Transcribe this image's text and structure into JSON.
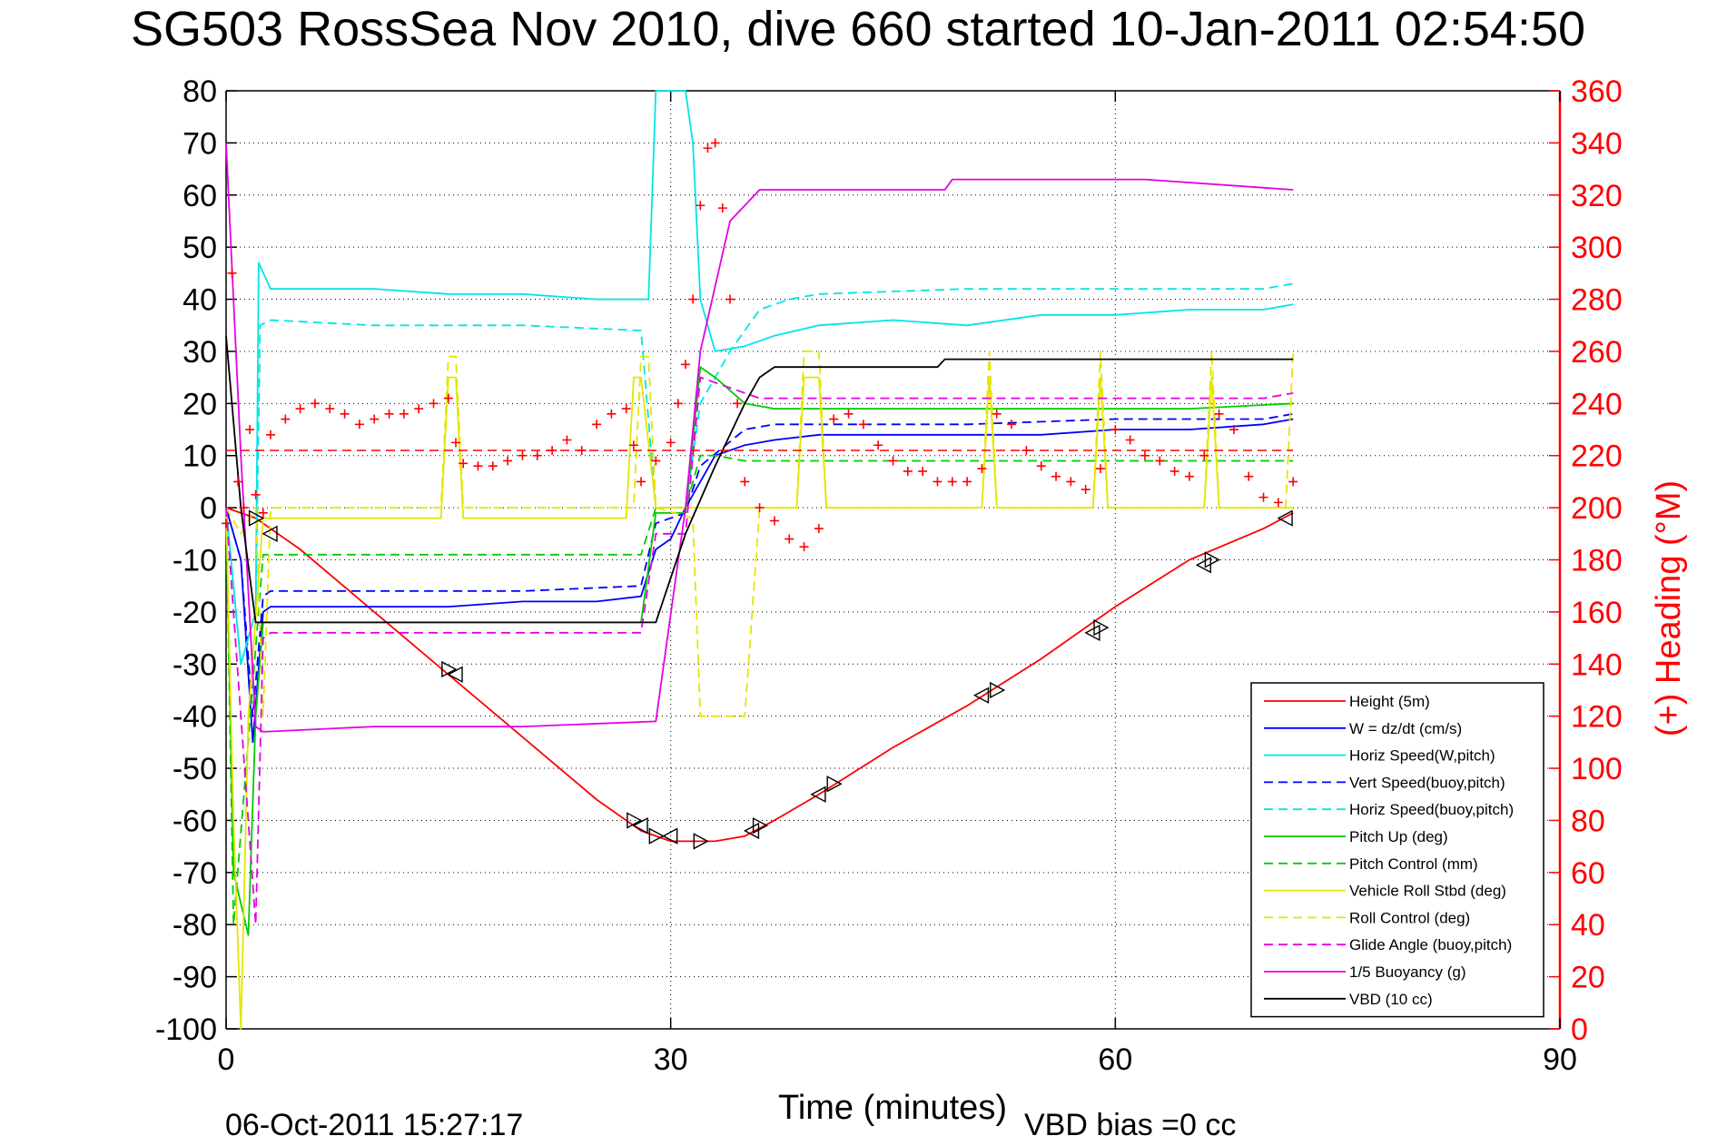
{
  "chart_data": {
    "type": "line",
    "title": "SG503 RossSea Nov 2010, dive 660 started 10-Jan-2011 02:54:50",
    "xlabel": "Time (minutes)",
    "ylabel_right": "(+) Heading (°M)",
    "footer_timestamp": "06-Oct-2011 15:27:17",
    "footer_note": "VBD bias =0 cc",
    "xlim": [
      0,
      90
    ],
    "ylim_left": [
      -100,
      80
    ],
    "ylim_right": [
      0,
      360
    ],
    "xticks": [
      "0",
      "30",
      "60",
      "90"
    ],
    "yticks_left": [
      "80",
      "70",
      "60",
      "50",
      "40",
      "30",
      "20",
      "10",
      "0",
      "-10",
      "-20",
      "-30",
      "-40",
      "-50",
      "-60",
      "-70",
      "-80",
      "-90",
      "-100"
    ],
    "yticks_right": [
      "360",
      "340",
      "320",
      "300",
      "280",
      "260",
      "240",
      "220",
      "200",
      "180",
      "160",
      "140",
      "120",
      "100",
      "80",
      "60",
      "40",
      "20",
      "0"
    ],
    "grid": true,
    "legend_position": "bottom-right",
    "colors": {
      "right_axis": "#ff0000"
    },
    "series": [
      {
        "name": "Height (5m)",
        "color": "#ff0000",
        "style": "solid",
        "x": [
          0,
          2,
          5,
          10,
          15,
          20,
          25,
          28,
          30,
          31,
          32,
          33,
          35,
          37,
          40,
          45,
          50,
          55,
          60,
          65,
          70,
          72
        ],
        "y": [
          0,
          -2,
          -8,
          -20,
          -32,
          -44,
          -56,
          -62,
          -64,
          -64,
          -64,
          -64,
          -63,
          -60,
          -55,
          -46,
          -38,
          -29,
          -19,
          -10,
          -4,
          -1
        ]
      },
      {
        "name": "W = dz/dt (cm/s)",
        "color": "#0000ff",
        "style": "solid",
        "x": [
          0,
          1,
          1.8,
          2.5,
          3,
          5,
          10,
          15,
          20,
          25,
          28,
          29,
          30,
          31,
          33,
          35,
          37,
          40,
          45,
          50,
          55,
          60,
          65,
          70,
          72
        ],
        "y": [
          0,
          -10,
          -45,
          -20,
          -19,
          -19,
          -19,
          -19,
          -18,
          -18,
          -17,
          -8,
          -6,
          0,
          10,
          12,
          13,
          14,
          14,
          14,
          14,
          15,
          15,
          16,
          17
        ]
      },
      {
        "name": "Horiz Speed(W,pitch)",
        "color": "#00e5e5",
        "style": "solid",
        "x": [
          0,
          1,
          2,
          2.2,
          3,
          5,
          10,
          15,
          20,
          25,
          28.5,
          29,
          30,
          31,
          31.5,
          32,
          33,
          35,
          37,
          40,
          45,
          50,
          55,
          60,
          65,
          70,
          72
        ],
        "y": [
          0,
          -30,
          -20,
          47,
          42,
          42,
          42,
          41,
          41,
          40,
          40,
          80,
          80,
          80,
          70,
          40,
          30,
          31,
          33,
          35,
          36,
          35,
          37,
          37,
          38,
          38,
          39
        ]
      },
      {
        "name": "Vert Speed(buoy,pitch)",
        "color": "#0000ff",
        "style": "dashed",
        "x": [
          0,
          1,
          1.8,
          2.5,
          3,
          10,
          20,
          28,
          29,
          31,
          32,
          35,
          37,
          40,
          50,
          60,
          70,
          72
        ],
        "y": [
          0,
          -10,
          -40,
          -17,
          -16,
          -16,
          -16,
          -15,
          -3,
          -1,
          8,
          15,
          16,
          16,
          16,
          17,
          17,
          18
        ]
      },
      {
        "name": "Horiz Speed(buoy,pitch)",
        "color": "#00e5e5",
        "style": "dashed",
        "x": [
          0,
          1,
          2,
          2.3,
          3,
          10,
          20,
          28,
          29,
          31,
          32,
          34,
          36,
          38,
          40,
          50,
          60,
          70,
          72
        ],
        "y": [
          0,
          -30,
          -20,
          35,
          36,
          35,
          35,
          34,
          0,
          0,
          20,
          30,
          38,
          40,
          41,
          42,
          42,
          42,
          43
        ]
      },
      {
        "name": "Pitch Up (deg)",
        "color": "#00cc00",
        "style": "solid",
        "x": [
          0,
          0.5,
          1.5,
          2,
          2.5,
          3,
          10,
          20,
          28,
          29,
          31,
          32,
          33,
          35,
          37,
          45,
          55,
          65,
          72
        ],
        "y": [
          0,
          -70,
          -82,
          -40,
          -22,
          -22,
          -22,
          -22,
          -22,
          -1,
          -1,
          27,
          25,
          20,
          19,
          19,
          19,
          19,
          20
        ]
      },
      {
        "name": "Pitch Control (mm)",
        "color": "#00cc00",
        "style": "dashed",
        "x": [
          0,
          0.5,
          2.5,
          3,
          10,
          20,
          28,
          29,
          31,
          32,
          33,
          35,
          37,
          40,
          50,
          60,
          70,
          72
        ],
        "y": [
          0,
          -80,
          -9,
          -9,
          -9,
          -9,
          -9,
          0,
          0,
          10,
          10,
          9,
          9,
          9,
          9,
          9,
          9,
          9
        ]
      },
      {
        "name": "Vehicle Roll Stbd (deg)",
        "color": "#e5e500",
        "style": "solid",
        "x": [
          0,
          0.5,
          1,
          1.5,
          2.5,
          3,
          14.5,
          15,
          15.5,
          16,
          27,
          27.5,
          28,
          29,
          31,
          35,
          38.5,
          39,
          40,
          40.5,
          51,
          51.5,
          52,
          58.5,
          59,
          59.5,
          66,
          66.5,
          67,
          72
        ],
        "y": [
          0,
          -60,
          -100,
          -40,
          -2,
          -2,
          -2,
          25,
          25,
          -2,
          -2,
          25,
          25,
          0,
          0,
          0,
          0,
          25,
          25,
          0,
          0,
          25,
          0,
          0,
          25,
          0,
          0,
          25,
          0,
          0
        ]
      },
      {
        "name": "Roll Control (deg)",
        "color": "#e5e500",
        "style": "dashed",
        "x": [
          0,
          1,
          2,
          2.5,
          3,
          14.5,
          15,
          15.5,
          16,
          27.5,
          28,
          28.5,
          29,
          31.5,
          32,
          35,
          35.5,
          36,
          38.5,
          39,
          40,
          40.5,
          51,
          51.5,
          52,
          58.5,
          59,
          59.5,
          66,
          66.5,
          67,
          71.5,
          72
        ],
        "y": [
          0,
          -5,
          0,
          -40,
          0,
          0,
          29,
          29,
          0,
          0,
          29,
          29,
          0,
          -2,
          -40,
          -40,
          -20,
          0,
          0,
          30,
          30,
          0,
          0,
          30,
          0,
          0,
          30,
          0,
          0,
          30,
          0,
          0,
          30
        ]
      },
      {
        "name": "Glide Angle (buoy,pitch)",
        "color": "#e500e5",
        "style": "dashed",
        "x": [
          0,
          1,
          2,
          2.5,
          3,
          10,
          20,
          28,
          29,
          31,
          32,
          34,
          36,
          40,
          50,
          60,
          70,
          72
        ],
        "y": [
          0,
          -40,
          -80,
          -25,
          -24,
          -24,
          -24,
          -24,
          -5,
          -5,
          25,
          23,
          21,
          21,
          21,
          21,
          21,
          22
        ]
      },
      {
        "name": "1/5 Buoyancy (g)",
        "color": "#e500e5",
        "style": "solid",
        "x": [
          0,
          1,
          2,
          2.5,
          10,
          20,
          29,
          31,
          32,
          34,
          36,
          40,
          45,
          48.5,
          49,
          55,
          62,
          67,
          72
        ],
        "y": [
          70,
          10,
          -42,
          -43,
          -42,
          -42,
          -41,
          0,
          30,
          55,
          61,
          61,
          61,
          61,
          63,
          63,
          63,
          62,
          61
        ]
      },
      {
        "name": "VBD (10 cc)",
        "color": "#000000",
        "style": "solid",
        "x": [
          0,
          1,
          2,
          2.5,
          10,
          20,
          29,
          31,
          33,
          35,
          36,
          37,
          40,
          48,
          48.5,
          60,
          72
        ],
        "y": [
          33,
          0,
          -22,
          -22,
          -22,
          -22,
          -22,
          -5,
          8,
          20,
          25,
          27,
          27,
          27,
          28.5,
          28.5,
          28.5
        ]
      }
    ],
    "heading_series": {
      "name": "(+) Heading (°M)",
      "axis": "right",
      "color": "#ff0000",
      "marker": "+",
      "reference_line": {
        "value": 222,
        "style": "dashed"
      },
      "x": [
        0,
        0.4,
        0.8,
        1.2,
        1.6,
        2.0,
        2.5,
        3,
        4,
        5,
        6,
        7,
        8,
        9,
        10,
        11,
        12,
        13,
        14,
        15,
        15.5,
        16,
        17,
        18,
        19,
        20,
        21,
        22,
        23,
        24,
        25,
        26,
        27,
        27.5,
        28,
        29,
        30,
        30.5,
        31,
        31.5,
        32,
        32.5,
        33,
        33.5,
        34,
        34.5,
        35,
        36,
        37,
        38,
        39,
        40,
        41,
        42,
        43,
        44,
        45,
        46,
        47,
        48,
        49,
        50,
        51,
        52,
        53,
        54,
        55,
        56,
        57,
        58,
        59,
        60,
        61,
        62,
        63,
        64,
        65,
        66,
        67,
        68,
        69,
        70,
        71,
        72
      ],
      "y": [
        194,
        290,
        210,
        200,
        230,
        205,
        198,
        228,
        234,
        238,
        240,
        238,
        236,
        232,
        234,
        236,
        236,
        238,
        240,
        242,
        225,
        217,
        216,
        216,
        218,
        220,
        220,
        222,
        226,
        222,
        232,
        236,
        238,
        224,
        210,
        218,
        225,
        240,
        255,
        280,
        316,
        338,
        340,
        315,
        280,
        240,
        210,
        200,
        195,
        188,
        185,
        192,
        234,
        236,
        232,
        224,
        218,
        214,
        214,
        210,
        210,
        210,
        215,
        236,
        232,
        222,
        216,
        212,
        210,
        207,
        215,
        230,
        226,
        220,
        218,
        214,
        212,
        220,
        236,
        230,
        212,
        204,
        202,
        210
      ]
    },
    "height_markers": {
      "x": [
        2,
        3,
        15,
        15.5,
        27.5,
        28,
        29,
        30,
        32,
        35.5,
        36,
        40,
        41,
        51,
        52,
        58.5,
        59,
        66,
        66.5,
        71.5
      ],
      "y": [
        -2,
        -5,
        -31,
        -32,
        -60,
        -61,
        -63,
        -63,
        -64,
        -62,
        -61,
        -55,
        -53,
        -36,
        -35,
        -24,
        -23,
        -11,
        -10,
        -2
      ]
    }
  }
}
